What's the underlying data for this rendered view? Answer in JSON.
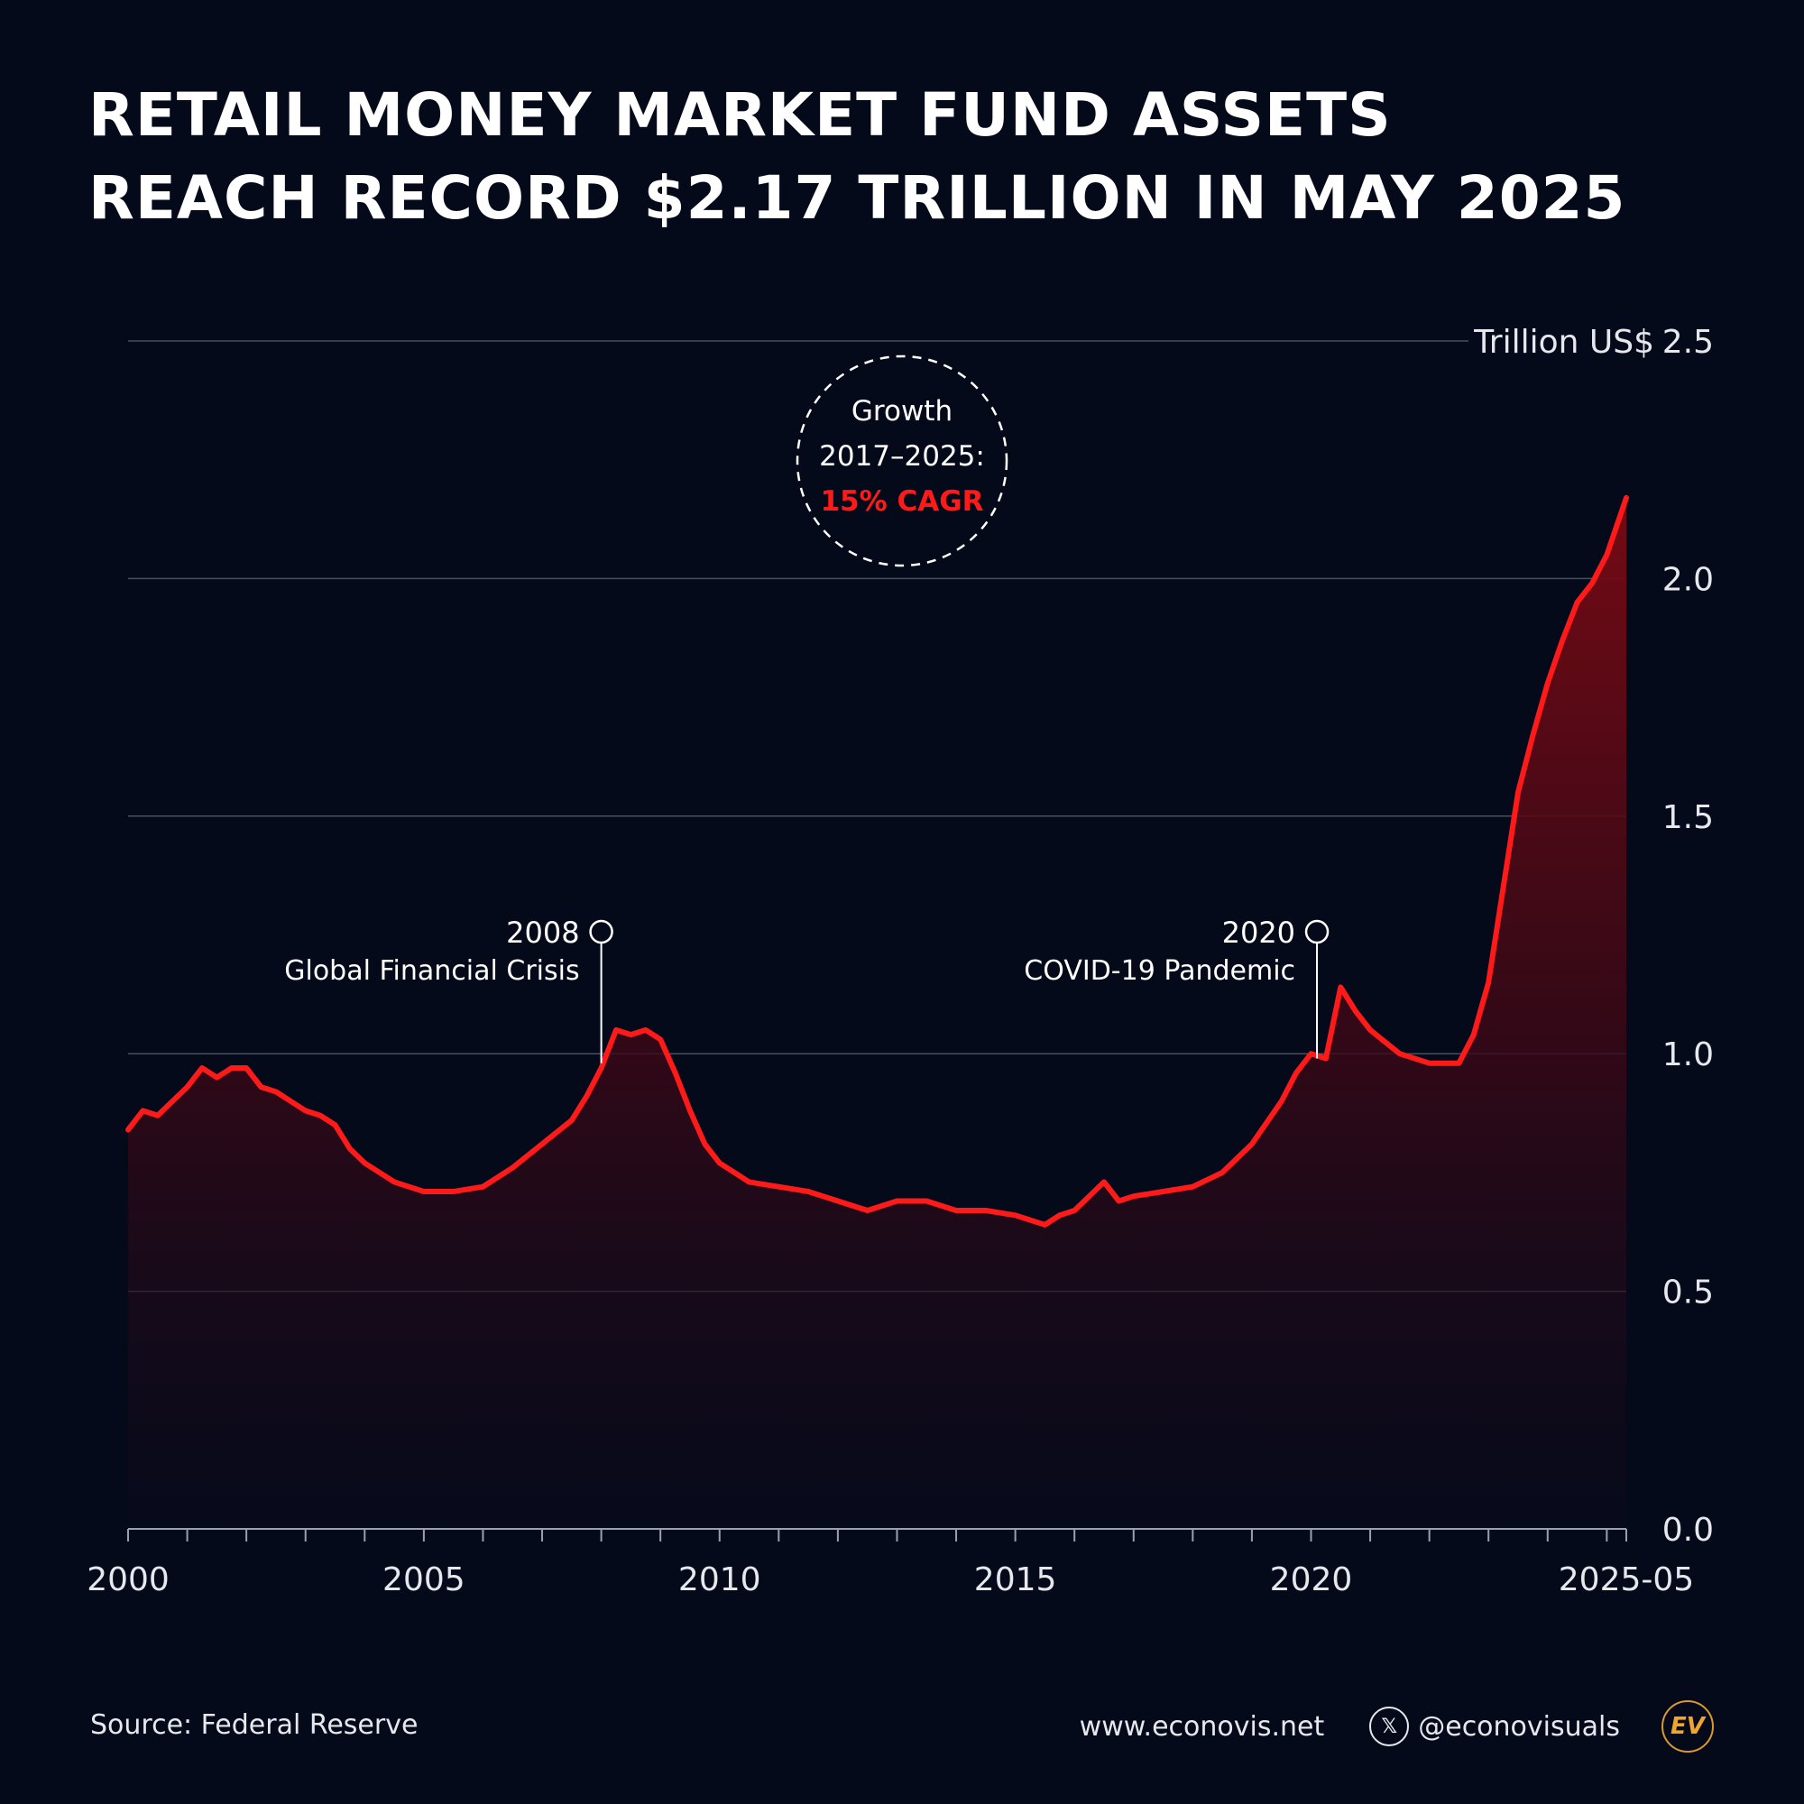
{
  "title_lines": [
    "Retail Money Market Fund Assets",
    "Reach Record $2.17 Trillion in May 2025"
  ],
  "source": "Source: Federal Reserve",
  "website": "www.econovis.net",
  "handle": "@econovisuals",
  "x_icon_glyph": "𝕏",
  "logo_text": "EV",
  "chart_data": {
    "type": "area",
    "unit_label": "Trillion US$",
    "ylim": [
      0,
      2.5
    ],
    "y_ticks": [
      0.0,
      0.5,
      1.0,
      1.5,
      2.0,
      2.5
    ],
    "y_tick_labels": [
      "0.0",
      "0.5",
      "1.0",
      "1.5",
      "2.0",
      "2.5"
    ],
    "xlim": [
      2000.0,
      2025.33
    ],
    "x_ticks": [
      2000,
      2005,
      2010,
      2015,
      2020,
      2025.33
    ],
    "x_tick_labels": [
      "2000",
      "2005",
      "2010",
      "2015",
      "2020",
      "2025-05"
    ],
    "grid": true,
    "line_color": "#ff1a1a",
    "x": [
      2000.0,
      2000.25,
      2000.5,
      2000.75,
      2001.0,
      2001.25,
      2001.5,
      2001.75,
      2002.0,
      2002.25,
      2002.5,
      2002.75,
      2003.0,
      2003.25,
      2003.5,
      2003.75,
      2004.0,
      2004.25,
      2004.5,
      2004.75,
      2005.0,
      2005.5,
      2006.0,
      2006.5,
      2007.0,
      2007.5,
      2007.75,
      2008.0,
      2008.25,
      2008.5,
      2008.75,
      2009.0,
      2009.25,
      2009.5,
      2009.75,
      2010.0,
      2010.5,
      2011.0,
      2011.5,
      2012.0,
      2012.5,
      2013.0,
      2013.5,
      2014.0,
      2014.5,
      2015.0,
      2015.5,
      2015.75,
      2016.0,
      2016.5,
      2016.75,
      2017.0,
      2017.5,
      2018.0,
      2018.5,
      2019.0,
      2019.5,
      2019.75,
      2020.0,
      2020.25,
      2020.5,
      2020.75,
      2021.0,
      2021.5,
      2022.0,
      2022.5,
      2022.75,
      2023.0,
      2023.25,
      2023.5,
      2023.75,
      2024.0,
      2024.25,
      2024.5,
      2024.75,
      2025.0,
      2025.33
    ],
    "y": [
      0.84,
      0.88,
      0.87,
      0.9,
      0.93,
      0.97,
      0.95,
      0.97,
      0.97,
      0.93,
      0.92,
      0.9,
      0.88,
      0.87,
      0.85,
      0.8,
      0.77,
      0.75,
      0.73,
      0.72,
      0.71,
      0.71,
      0.72,
      0.76,
      0.81,
      0.86,
      0.91,
      0.97,
      1.05,
      1.04,
      1.05,
      1.03,
      0.96,
      0.88,
      0.81,
      0.77,
      0.73,
      0.72,
      0.71,
      0.69,
      0.67,
      0.69,
      0.69,
      0.67,
      0.67,
      0.66,
      0.64,
      0.66,
      0.67,
      0.73,
      0.69,
      0.7,
      0.71,
      0.72,
      0.75,
      0.81,
      0.9,
      0.96,
      1.0,
      0.99,
      1.14,
      1.09,
      1.05,
      1.0,
      0.98,
      0.98,
      1.04,
      1.15,
      1.35,
      1.55,
      1.67,
      1.78,
      1.87,
      1.95,
      1.99,
      2.05,
      2.17
    ],
    "annotations": [
      {
        "x": 2008.0,
        "y": 0.98,
        "label_year": "2008",
        "label_text": "Global Financial Crisis"
      },
      {
        "x": 2020.1,
        "y": 0.99,
        "label_year": "2020",
        "label_text": "COVID-19 Pandemic"
      }
    ],
    "callout": {
      "line1": "Growth",
      "line2": "2017–2025:",
      "line3": "15% CAGR",
      "highlight_color": "#ff1a1a"
    }
  }
}
